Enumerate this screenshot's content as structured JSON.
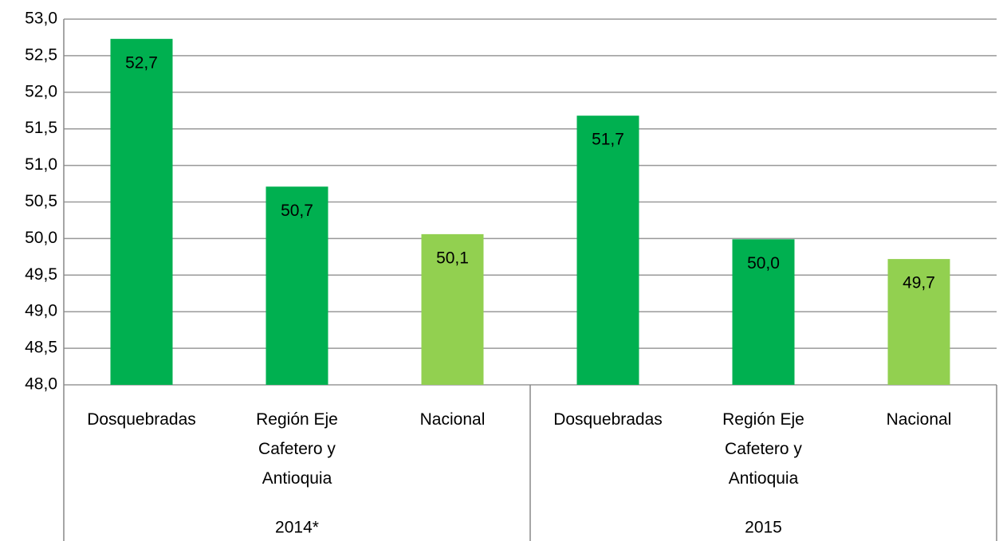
{
  "chart_data": {
    "type": "bar",
    "groups": [
      {
        "name": "2014*",
        "categories": [
          "Dosquebradas",
          "Región Eje Cafetero y Antioquia",
          "Nacional"
        ],
        "values": [
          52.73,
          50.71,
          50.06
        ],
        "value_labels": [
          "52,7",
          "50,7",
          "50,1"
        ],
        "colors": [
          "#00b050",
          "#00b050",
          "#92d050"
        ]
      },
      {
        "name": "2015",
        "categories": [
          "Dosquebradas",
          "Región Eje Cafetero y Antioquia",
          "Nacional"
        ],
        "values": [
          51.68,
          49.99,
          49.72
        ],
        "value_labels": [
          "51,7",
          "50,0",
          "49,7"
        ],
        "colors": [
          "#00b050",
          "#00b050",
          "#92d050"
        ]
      }
    ],
    "ylim": [
      48,
      53
    ],
    "yticks": [
      {
        "value": 48,
        "label": "48,0"
      },
      {
        "value": 48.5,
        "label": "48,5"
      },
      {
        "value": 49,
        "label": "49,0"
      },
      {
        "value": 49.5,
        "label": "49,5"
      },
      {
        "value": 50,
        "label": "50,0"
      },
      {
        "value": 50.5,
        "label": "50,5"
      },
      {
        "value": 51,
        "label": "51,0"
      },
      {
        "value": 51.5,
        "label": "51,5"
      },
      {
        "value": 52,
        "label": "52,0"
      },
      {
        "value": 52.5,
        "label": "52,5"
      },
      {
        "value": 53,
        "label": "53,0"
      }
    ],
    "grid": true
  }
}
